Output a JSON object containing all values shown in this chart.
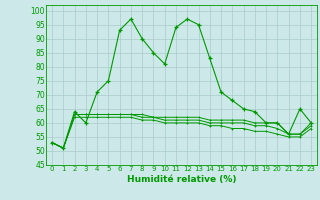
{
  "x": [
    0,
    1,
    2,
    3,
    4,
    5,
    6,
    7,
    8,
    9,
    10,
    11,
    12,
    13,
    14,
    15,
    16,
    17,
    18,
    19,
    20,
    21,
    22,
    23
  ],
  "main_line": [
    53,
    51,
    64,
    60,
    71,
    75,
    93,
    97,
    90,
    85,
    81,
    94,
    97,
    95,
    83,
    71,
    68,
    65,
    64,
    60,
    60,
    56,
    65,
    60
  ],
  "flat_line1": [
    53,
    51,
    63,
    63,
    63,
    63,
    63,
    63,
    63,
    62,
    62,
    62,
    62,
    62,
    61,
    61,
    61,
    61,
    60,
    60,
    60,
    56,
    56,
    60
  ],
  "flat_line2": [
    53,
    51,
    63,
    63,
    63,
    63,
    63,
    63,
    62,
    62,
    61,
    61,
    61,
    61,
    60,
    60,
    60,
    60,
    59,
    59,
    58,
    56,
    56,
    59
  ],
  "flat_line3": [
    53,
    51,
    62,
    62,
    62,
    62,
    62,
    62,
    61,
    61,
    60,
    60,
    60,
    60,
    59,
    59,
    58,
    58,
    57,
    57,
    56,
    55,
    55,
    58
  ],
  "bg_color": "#cce8e8",
  "grid_color": "#aacccc",
  "line_color": "#009900",
  "xlabel": "Humidité relative (%)",
  "ylim": [
    45,
    102
  ],
  "xlim": [
    -0.5,
    23.5
  ],
  "yticks": [
    45,
    50,
    55,
    60,
    65,
    70,
    75,
    80,
    85,
    90,
    95,
    100
  ],
  "xticks": [
    0,
    1,
    2,
    3,
    4,
    5,
    6,
    7,
    8,
    9,
    10,
    11,
    12,
    13,
    14,
    15,
    16,
    17,
    18,
    19,
    20,
    21,
    22,
    23
  ]
}
